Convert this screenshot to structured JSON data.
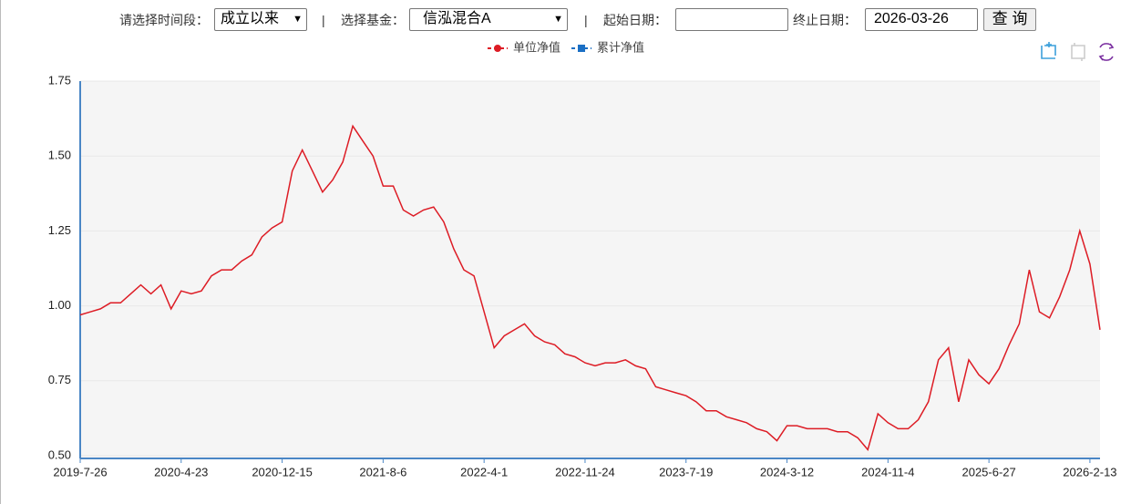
{
  "controls": {
    "period_label": "请选择时间段：",
    "period_value": "成立以来",
    "separator": "|",
    "fund_label": "选择基金：",
    "fund_value": "信泓混合A",
    "start_label": "起始日期：",
    "end_label": "终止日期：",
    "end_value": "2026-03-26",
    "query_button": "查 询"
  },
  "chart_data": {
    "type": "line",
    "categories": [
      "2019-7-26",
      null,
      null,
      null,
      null,
      null,
      null,
      null,
      null,
      null,
      "2020-4-23",
      null,
      null,
      null,
      null,
      null,
      null,
      null,
      null,
      null,
      "2020-12-15",
      null,
      null,
      null,
      null,
      null,
      null,
      null,
      null,
      null,
      "2021-8-6",
      null,
      null,
      null,
      null,
      null,
      null,
      null,
      null,
      null,
      "2022-4-1",
      null,
      null,
      null,
      null,
      null,
      null,
      null,
      null,
      null,
      "2022-11-24",
      null,
      null,
      null,
      null,
      null,
      null,
      null,
      null,
      null,
      "2023-7-19",
      null,
      null,
      null,
      null,
      null,
      null,
      null,
      null,
      null,
      "2024-3-12",
      null,
      null,
      null,
      null,
      null,
      null,
      null,
      null,
      null,
      "2024-11-4",
      null,
      null,
      null,
      null,
      null,
      null,
      null,
      null,
      null,
      "2025-6-27",
      null,
      null,
      null,
      null,
      null,
      null,
      null,
      null,
      null,
      "2026-2-13",
      null
    ],
    "series": [
      {
        "name": "单位净值",
        "color": "#dd1c25",
        "values": [
          0.97,
          0.98,
          0.99,
          1.01,
          1.01,
          1.04,
          1.07,
          1.04,
          1.07,
          0.99,
          1.05,
          1.04,
          1.05,
          1.1,
          1.12,
          1.12,
          1.15,
          1.17,
          1.23,
          1.26,
          1.28,
          1.45,
          1.52,
          1.45,
          1.38,
          1.42,
          1.48,
          1.6,
          1.55,
          1.5,
          1.4,
          1.4,
          1.32,
          1.3,
          1.32,
          1.33,
          1.28,
          1.19,
          1.12,
          1.1,
          0.98,
          0.86,
          0.9,
          0.92,
          0.94,
          0.9,
          0.88,
          0.87,
          0.84,
          0.83,
          0.81,
          0.8,
          0.81,
          0.81,
          0.82,
          0.8,
          0.79,
          0.73,
          0.72,
          0.71,
          0.7,
          0.68,
          0.65,
          0.65,
          0.63,
          0.62,
          0.61,
          0.59,
          0.58,
          0.55,
          0.6,
          0.6,
          0.59,
          0.59,
          0.59,
          0.58,
          0.58,
          0.56,
          0.52,
          0.64,
          0.61,
          0.59,
          0.59,
          0.62,
          0.68,
          0.82,
          0.86,
          0.68,
          0.82,
          0.77,
          0.74,
          0.79,
          0.87,
          0.94,
          1.12,
          0.98,
          0.96,
          1.03,
          1.12,
          1.25,
          1.14,
          0.92
        ]
      }
    ],
    "hidden_series": [
      {
        "name": "累计净值",
        "color": "#1a6fc4"
      }
    ],
    "ylim": [
      0.5,
      1.75
    ],
    "yticks": [
      {
        "value": 0.5,
        "label": "0.50"
      },
      0.75,
      {
        "value": 1,
        "label": "1.00"
      },
      1.25,
      {
        "value": 1.5,
        "label": "1.50"
      },
      1.75
    ],
    "grid": true
  }
}
